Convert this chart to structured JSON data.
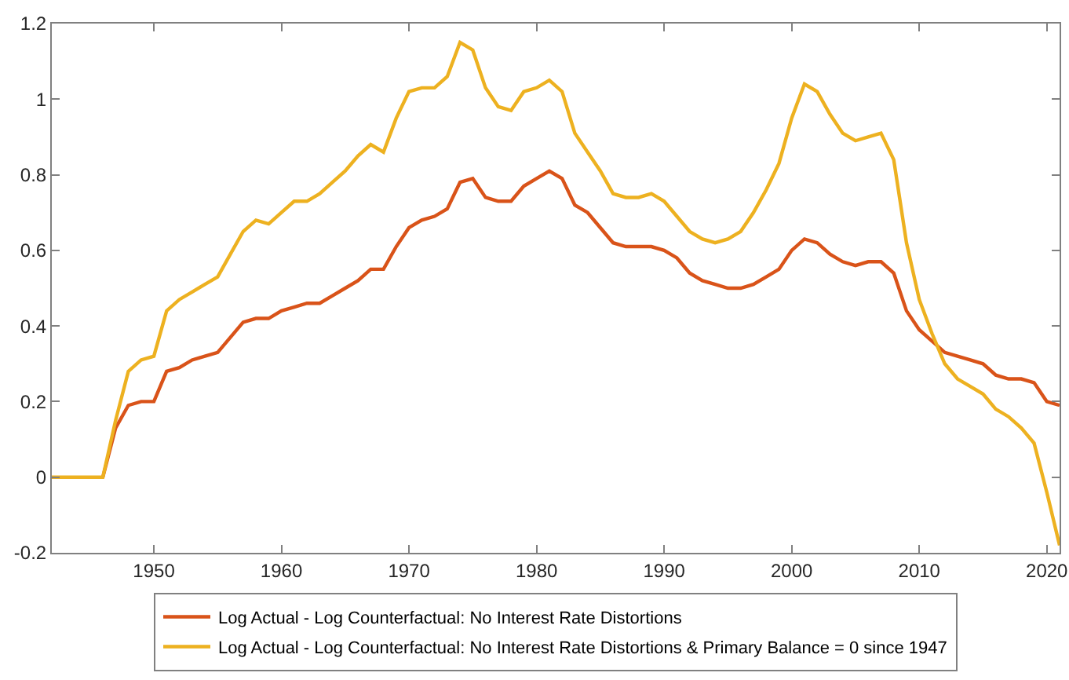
{
  "chart_data": {
    "type": "line",
    "x": [
      1942,
      1943,
      1944,
      1945,
      1946,
      1947,
      1948,
      1949,
      1950,
      1951,
      1952,
      1953,
      1954,
      1955,
      1956,
      1957,
      1958,
      1959,
      1960,
      1961,
      1962,
      1963,
      1964,
      1965,
      1966,
      1967,
      1968,
      1969,
      1970,
      1971,
      1972,
      1973,
      1974,
      1975,
      1976,
      1977,
      1978,
      1979,
      1980,
      1981,
      1982,
      1983,
      1984,
      1985,
      1986,
      1987,
      1988,
      1989,
      1990,
      1991,
      1992,
      1993,
      1994,
      1995,
      1996,
      1997,
      1998,
      1999,
      2000,
      2001,
      2002,
      2003,
      2004,
      2005,
      2006,
      2007,
      2008,
      2009,
      2010,
      2011,
      2012,
      2013,
      2014,
      2015,
      2016,
      2017,
      2018,
      2019,
      2020,
      2021
    ],
    "series": [
      {
        "name": "Log Actual - Log Counterfactual: No Interest Rate Distortions",
        "color": "#d95319",
        "values": [
          null,
          null,
          null,
          null,
          0,
          0.13,
          0.19,
          0.2,
          0.2,
          0.28,
          0.29,
          0.31,
          0.32,
          0.33,
          0.37,
          0.41,
          0.42,
          0.42,
          0.44,
          0.45,
          0.46,
          0.46,
          0.48,
          0.5,
          0.52,
          0.55,
          0.55,
          0.61,
          0.66,
          0.68,
          0.69,
          0.71,
          0.78,
          0.79,
          0.74,
          0.73,
          0.73,
          0.77,
          0.79,
          0.81,
          0.79,
          0.72,
          0.7,
          0.66,
          0.62,
          0.61,
          0.61,
          0.61,
          0.6,
          0.58,
          0.54,
          0.52,
          0.51,
          0.5,
          0.5,
          0.51,
          0.53,
          0.55,
          0.6,
          0.63,
          0.62,
          0.59,
          0.57,
          0.56,
          0.57,
          0.57,
          0.54,
          0.44,
          0.39,
          0.36,
          0.33,
          0.32,
          0.31,
          0.3,
          0.27,
          0.26,
          0.26,
          0.25,
          0.2,
          0.19
        ]
      },
      {
        "name": "Log Actual - Log Counterfactual: No Interest Rate Distortions & Primary Balance = 0 since 1947",
        "color": "#edb120",
        "values": [
          0,
          0,
          0,
          0,
          0,
          0.15,
          0.28,
          0.31,
          0.32,
          0.44,
          0.47,
          0.49,
          0.51,
          0.53,
          0.59,
          0.65,
          0.68,
          0.67,
          0.7,
          0.73,
          0.73,
          0.75,
          0.78,
          0.81,
          0.85,
          0.88,
          0.86,
          0.95,
          1.02,
          1.03,
          1.03,
          1.06,
          1.15,
          1.13,
          1.03,
          0.98,
          0.97,
          1.02,
          1.03,
          1.05,
          1.02,
          0.91,
          0.86,
          0.81,
          0.75,
          0.74,
          0.74,
          0.75,
          0.73,
          0.69,
          0.65,
          0.63,
          0.62,
          0.63,
          0.65,
          0.7,
          0.76,
          0.83,
          0.95,
          1.04,
          1.02,
          0.96,
          0.91,
          0.89,
          0.9,
          0.91,
          0.84,
          0.62,
          0.47,
          0.38,
          0.3,
          0.26,
          0.24,
          0.22,
          0.18,
          0.16,
          0.13,
          0.09,
          -0.04,
          -0.18
        ]
      }
    ],
    "xlim": [
      1942,
      2021
    ],
    "xticks": [
      1950,
      1960,
      1970,
      1980,
      1990,
      2000,
      2010,
      2020
    ],
    "ylim": [
      -0.2,
      1.2
    ],
    "yticks": [
      -0.2,
      0,
      0.2,
      0.4,
      0.6,
      0.8,
      1,
      1.2
    ],
    "grid": false,
    "legend": "bottom",
    "line_style": "solid",
    "marker": "none"
  }
}
